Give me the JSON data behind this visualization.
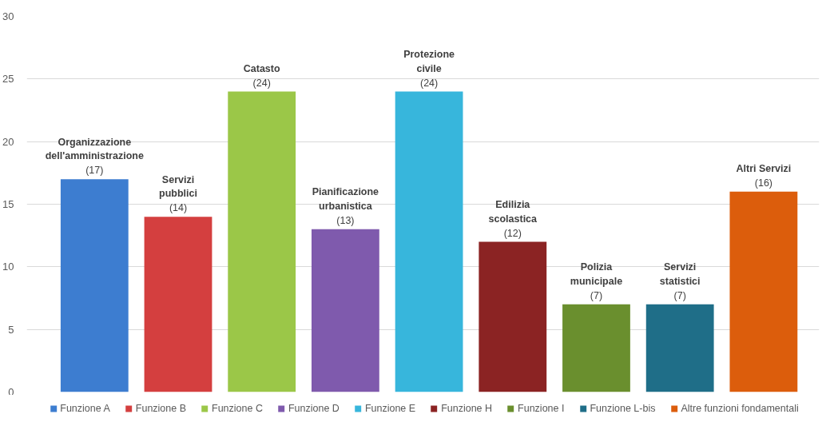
{
  "chart_data": {
    "type": "bar",
    "categories": [
      "Organizzazione dell'amministrazione",
      "Servizi pubblici",
      "Catasto",
      "Pianificazione urbanistica",
      "Protezione civile",
      "Edilizia scolastica",
      "Polizia municipale",
      "Servizi statistici",
      "Altri Servizi"
    ],
    "series": [
      {
        "name": "Funzione A",
        "color": "#3d7dd0",
        "values": [
          17,
          null,
          null,
          null,
          null,
          null,
          null,
          null,
          null
        ],
        "value_labels": [
          "(17)",
          null,
          null,
          null,
          null,
          null,
          null,
          null,
          null
        ]
      },
      {
        "name": "Funzione B",
        "color": "#d43f3f",
        "values": [
          null,
          14,
          null,
          null,
          null,
          null,
          null,
          null,
          null
        ],
        "value_labels": [
          null,
          "(14)",
          null,
          null,
          null,
          null,
          null,
          null,
          null
        ]
      },
      {
        "name": "Funzione C",
        "color": "#9bc748",
        "values": [
          null,
          null,
          24,
          null,
          null,
          null,
          null,
          null,
          null
        ],
        "value_labels": [
          null,
          null,
          "(24)",
          null,
          null,
          null,
          null,
          null,
          null
        ]
      },
      {
        "name": "Funzione D",
        "color": "#7f5aad",
        "values": [
          null,
          null,
          null,
          13,
          null,
          null,
          null,
          null,
          null
        ],
        "value_labels": [
          null,
          null,
          null,
          "(13)",
          null,
          null,
          null,
          null,
          null
        ]
      },
      {
        "name": "Funzione E",
        "color": "#37b6dc",
        "values": [
          null,
          null,
          null,
          null,
          24,
          null,
          null,
          null,
          null
        ],
        "value_labels": [
          null,
          null,
          null,
          null,
          "(24)",
          null,
          null,
          null,
          null
        ]
      },
      {
        "name": "Funzione H",
        "color": "#8b2323",
        "values": [
          null,
          null,
          null,
          null,
          null,
          12,
          null,
          null,
          null
        ],
        "value_labels": [
          null,
          null,
          null,
          null,
          null,
          "(12)",
          null,
          null,
          null
        ]
      },
      {
        "name": "Funzione I",
        "color": "#6a8f2e",
        "values": [
          null,
          null,
          null,
          null,
          null,
          null,
          7,
          null,
          null
        ],
        "value_labels": [
          null,
          null,
          null,
          null,
          null,
          null,
          "(7)",
          null,
          null
        ]
      },
      {
        "name": "Funzione L-bis",
        "color": "#1f6e88",
        "values": [
          null,
          null,
          null,
          null,
          null,
          null,
          null,
          7,
          null
        ],
        "value_labels": [
          null,
          null,
          null,
          null,
          null,
          null,
          null,
          "(7)",
          null
        ]
      },
      {
        "name": "Altre funzioni fondamentali",
        "color": "#dc5d0c",
        "values": [
          null,
          null,
          null,
          null,
          null,
          null,
          null,
          null,
          16
        ],
        "value_labels": [
          null,
          null,
          null,
          null,
          null,
          null,
          null,
          null,
          "(16)"
        ]
      }
    ],
    "ylim": [
      0,
      30
    ],
    "yticks": [
      0,
      5,
      10,
      15,
      20,
      25,
      30
    ],
    "grid": "y",
    "legend": "bottom"
  }
}
